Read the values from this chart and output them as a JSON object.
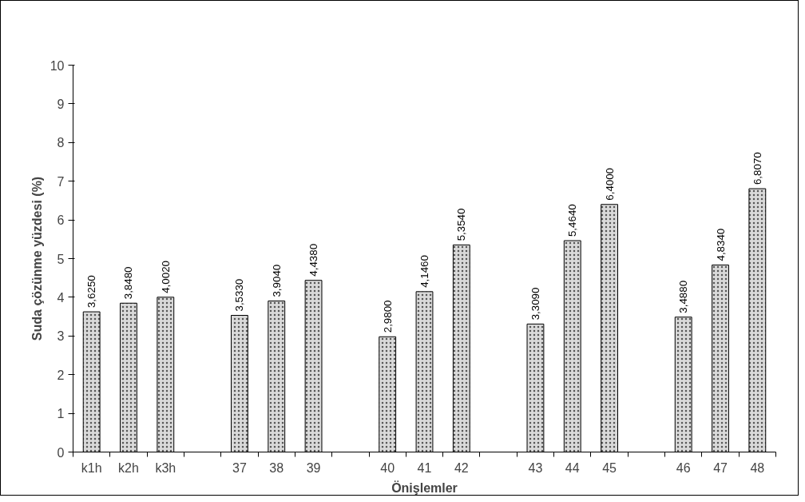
{
  "chart_data": {
    "type": "bar",
    "xlabel": "Önişlemler",
    "ylabel": "Suda çözünme yüzdesi (%)",
    "categories": [
      "k1h",
      "k2h",
      "k3h",
      null,
      "37",
      "38",
      "39",
      null,
      "40",
      "41",
      "42",
      null,
      "43",
      "44",
      "45",
      null,
      "46",
      "47",
      "48"
    ],
    "values": [
      3.625,
      3.848,
      4.002,
      null,
      3.533,
      3.904,
      4.438,
      null,
      2.98,
      4.146,
      5.354,
      null,
      3.309,
      5.464,
      6.4,
      null,
      3.488,
      4.834,
      6.807
    ],
    "value_labels": [
      "3,6250",
      "3,8480",
      "4,0020",
      null,
      "3,5330",
      "3,9040",
      "4,4380",
      null,
      "2,9800",
      "4,1460",
      "5,3540",
      null,
      "3,3090",
      "5,4640",
      "6,4000",
      null,
      "3,4880",
      "4,8340",
      "6,8070"
    ],
    "color": "#d9d9d9",
    "ylim": [
      0,
      10
    ],
    "yticks": [
      0,
      1,
      2,
      3,
      4,
      5,
      6,
      7,
      8,
      9,
      10
    ],
    "grid": false
  }
}
